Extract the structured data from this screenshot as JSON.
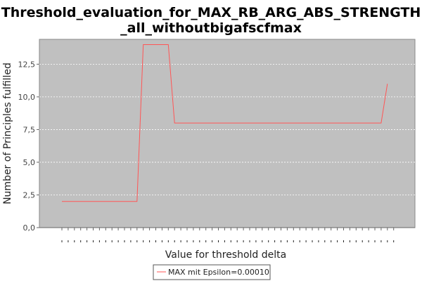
{
  "chart_data": {
    "type": "line",
    "title": "Threshold_evaluation_for_MAX_RB_ARG_ABS_STRENGTH_all_withoutbigafscfmax",
    "title_lines": [
      "Threshold_evaluation_for_MAX_RB_ARG_ABS_STRENGTH",
      "_all_withoutbigafscfmax"
    ],
    "xlabel": "Value for threshold delta",
    "ylabel": "Number of Principles fulfilled",
    "ylim": [
      0,
      14.4
    ],
    "yticks": [
      "0,0",
      "2,5",
      "5,0",
      "7,5",
      "10,0",
      "12,5"
    ],
    "ytick_values": [
      0,
      2.5,
      5,
      7.5,
      10,
      12.5
    ],
    "x_category_count": 54,
    "grid": true,
    "legend_placement": "bottom-center",
    "series": [
      {
        "name": "MAX mit Epsilon=0.00010",
        "color": "#ff5555",
        "points": [
          [
            0,
            2
          ],
          [
            12,
            2
          ],
          [
            13,
            14
          ],
          [
            17,
            14
          ],
          [
            18,
            8
          ],
          [
            51,
            8
          ],
          [
            52,
            11
          ]
        ]
      }
    ],
    "plot_background": "#c0c0c0",
    "grid_color": "#ffffff"
  }
}
